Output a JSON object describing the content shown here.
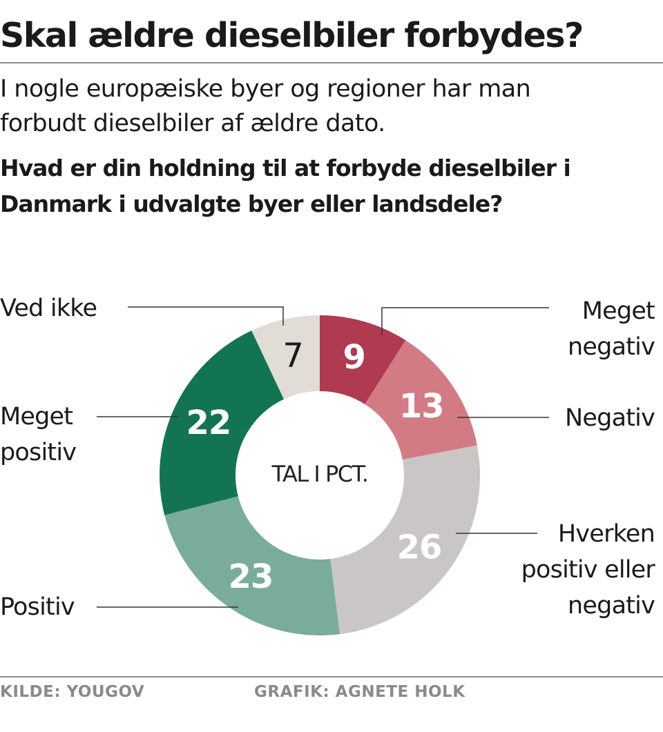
{
  "header": {
    "title": "Skal ældre dieselbiler forbydes?",
    "subtitle_line1": "I nogle europæiske byer og regioner har man",
    "subtitle_line2": "forbudt dieselbiler af ældre dato.",
    "question_line1": "Hvad er din holdning til at forbyde dieselbiler i",
    "question_line2": "Danmark i udvalgte byer eller landsdele?"
  },
  "chart_data": {
    "type": "pie",
    "center_label": "TAL I PCT.",
    "slices": [
      {
        "label_lines": [
          "Meget",
          "negativ"
        ],
        "value": 9,
        "value_text": "9",
        "color": "#b03a50",
        "text_color": "#ffffff"
      },
      {
        "label_lines": [
          "Negativ"
        ],
        "value": 13,
        "value_text": "13",
        "color": "#d37b85",
        "text_color": "#ffffff"
      },
      {
        "label_lines": [
          "Hverken",
          "positiv eller",
          "negativ"
        ],
        "value": 26,
        "value_text": "26",
        "color": "#c9c6c5",
        "text_color": "#ffffff"
      },
      {
        "label_lines": [
          "Positiv"
        ],
        "value": 23,
        "value_text": "23",
        "color": "#7aac9c",
        "text_color": "#ffffff"
      },
      {
        "label_lines": [
          "Meget",
          "positiv"
        ],
        "value": 22,
        "value_text": "22",
        "color": "#127453",
        "text_color": "#ffffff"
      },
      {
        "label_lines": [
          "Ved ikke"
        ],
        "value": 7,
        "value_text": "7",
        "color": "#e1ddd6",
        "text_color": "#1a1a1a"
      }
    ]
  },
  "footer": {
    "source": "KILDE: YOUGOV",
    "credit": "GRAFIK: AGNETE HOLK"
  }
}
